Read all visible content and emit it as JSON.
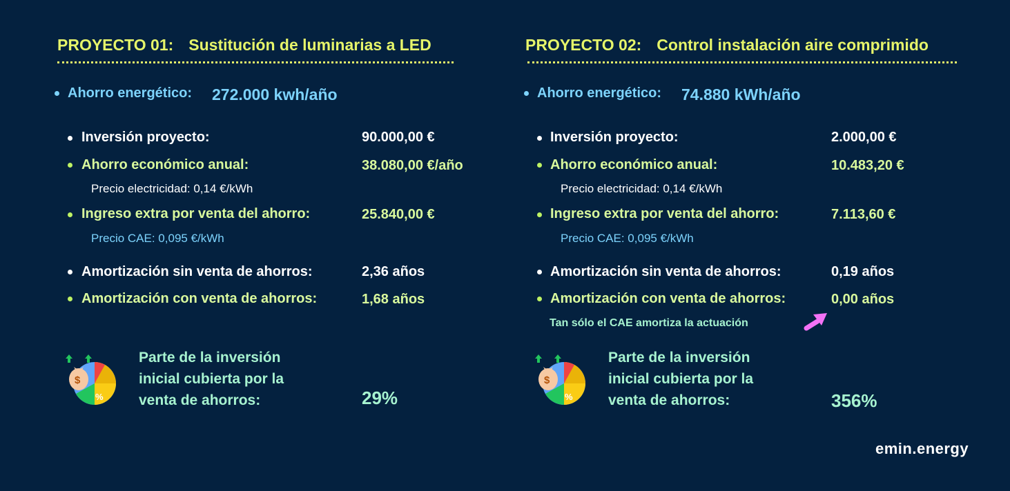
{
  "colors": {
    "background": "#04213f",
    "title_yellow": "#e6f56a",
    "light_green": "#d9f99d",
    "light_blue": "#7dd3fc",
    "mint": "#a7f3d0",
    "arrow_pink": "#f472f6"
  },
  "projects": [
    {
      "number": "PROYECTO 01:",
      "name": "Sustitución de luminarias a LED",
      "energy_label": "Ahorro energético:",
      "energy_value": "272.000 kwh/año",
      "investment_label": "Inversión proyecto:",
      "investment_value": "90.000,00 €",
      "annual_saving_label": "Ahorro económico anual:",
      "annual_saving_value": "38.080,00 €/año",
      "electricity_price": "Precio electricidad: 0,14 €/kWh",
      "extra_income_label": "Ingreso extra por venta del ahorro:",
      "extra_income_value": "25.840,00 €",
      "cae_price": "Precio CAE: 0,095 €/kWh",
      "payback_no_sale_label": "Amortización sin venta de ahorros:",
      "payback_no_sale_value": "2,36 años",
      "payback_sale_label": "Amortización con venta de ahorros:",
      "payback_sale_value": "1,68 años",
      "covered_line1": "Parte de la inversión",
      "covered_line2": "inicial cubierta por la",
      "covered_line3": "venta de ahorros:",
      "covered_value": "29%",
      "icon": "money-bag-pie-chart-icon"
    },
    {
      "number": "PROYECTO 02:",
      "name": "Control instalación aire comprimido",
      "energy_label": "Ahorro energético:",
      "energy_value": "74.880 kWh/año",
      "investment_label": "Inversión proyecto:",
      "investment_value": "2.000,00 €",
      "annual_saving_label": "Ahorro económico anual:",
      "annual_saving_value": "10.483,20 €",
      "electricity_price": "Precio electricidad: 0,14 €/kWh",
      "extra_income_label": "Ingreso extra por venta del ahorro:",
      "extra_income_value": "7.113,60 €",
      "cae_price": "Precio CAE: 0,095 €/kWh",
      "payback_no_sale_label": "Amortización sin venta de ahorros:",
      "payback_no_sale_value": "0,19 años",
      "payback_sale_label": "Amortización con venta de ahorros:",
      "payback_sale_value": "0,00 años",
      "note": "Tan sólo el CAE amortiza la actuación",
      "covered_line1": "Parte de la inversión",
      "covered_line2": "inicial cubierta por la",
      "covered_line3": "venta de ahorros:",
      "covered_value": "356%",
      "icon": "money-bag-pie-chart-icon"
    }
  ],
  "brand": "emin.energy"
}
